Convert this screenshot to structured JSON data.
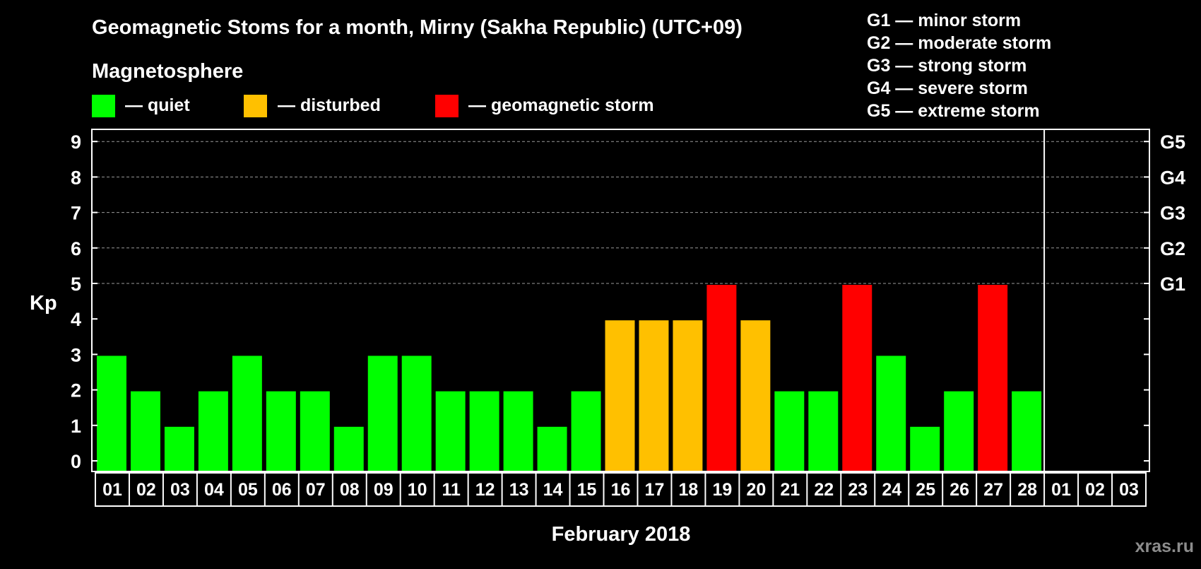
{
  "chart_data": {
    "type": "bar",
    "title": "Geomagnetic Stoms for a month, Mirny (Sakha Republic) (UTC+09)",
    "subtitle": "Magnetosphere",
    "xlabel": "February 2018",
    "ylabel": "Kp",
    "ylim": [
      0,
      9
    ],
    "yticks": [
      "0",
      "1",
      "2",
      "3",
      "4",
      "5",
      "6",
      "7",
      "8",
      "9"
    ],
    "right_axis": [
      {
        "kp": 5,
        "label": "G1"
      },
      {
        "kp": 6,
        "label": "G2"
      },
      {
        "kp": 7,
        "label": "G3"
      },
      {
        "kp": 8,
        "label": "G4"
      },
      {
        "kp": 9,
        "label": "G5"
      }
    ],
    "legend": [
      {
        "label": "— quiet",
        "color": "#00ff00"
      },
      {
        "label": "— disturbed",
        "color": "#ffc000"
      },
      {
        "label": "— geomagnetic storm",
        "color": "#ff0000"
      }
    ],
    "storm_scale": [
      "G1 — minor storm",
      "G2 — moderate storm",
      "G3 — strong storm",
      "G4 — severe storm",
      "G5 — extreme storm"
    ],
    "categories": [
      "01",
      "02",
      "03",
      "04",
      "05",
      "06",
      "07",
      "08",
      "09",
      "10",
      "11",
      "12",
      "13",
      "14",
      "15",
      "16",
      "17",
      "18",
      "19",
      "20",
      "21",
      "22",
      "23",
      "24",
      "25",
      "26",
      "27",
      "28",
      "01",
      "02",
      "03"
    ],
    "values": [
      3,
      2,
      1,
      2,
      3,
      2,
      2,
      1,
      3,
      3,
      2,
      2,
      2,
      1,
      2,
      4,
      4,
      4,
      5,
      4,
      2,
      2,
      5,
      3,
      1,
      2,
      5,
      2,
      null,
      null,
      null
    ],
    "colors": {
      "quiet": "#00ff00",
      "disturbed": "#ffc000",
      "storm": "#ff0000"
    },
    "watermark": "xras.ru"
  }
}
